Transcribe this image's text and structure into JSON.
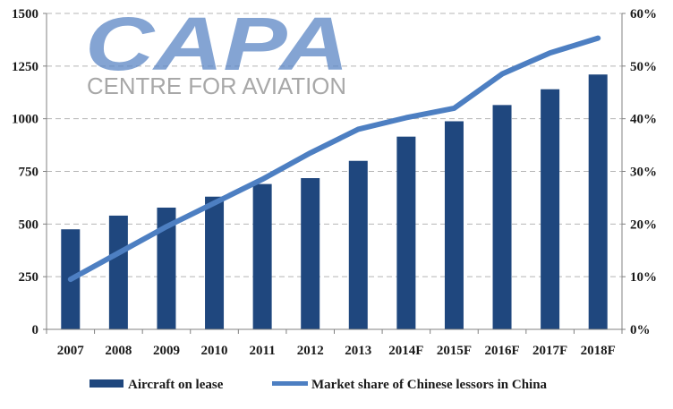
{
  "logo": {
    "name": "CAPA",
    "subtitle": "CENTRE FOR AVIATION"
  },
  "colors": {
    "bar": "#1f477e",
    "line": "#4d7fc2",
    "grid": "#b5b5b5",
    "axis": "#808080"
  },
  "chart_data": {
    "type": "bar",
    "categories": [
      "2007",
      "2008",
      "2009",
      "2010",
      "2011",
      "2012",
      "2013",
      "2014F",
      "2015F",
      "2016F",
      "2017F",
      "2018F"
    ],
    "series": [
      {
        "name": "Aircraft on lease",
        "type": "bar",
        "axis": "left",
        "values": [
          475,
          540,
          578,
          630,
          690,
          718,
          800,
          915,
          988,
          1065,
          1140,
          1210
        ]
      },
      {
        "name": "Market share of Chinese lessors in China",
        "type": "line",
        "axis": "right",
        "values": [
          9.5,
          14.5,
          19.5,
          24,
          28.5,
          33.5,
          38,
          40.2,
          42,
          48.5,
          52.5,
          55.3
        ]
      }
    ],
    "y_left": {
      "min": 0,
      "max": 1500,
      "ticks": [
        0,
        250,
        500,
        750,
        1000,
        1250,
        1500
      ],
      "tick_labels": [
        "0",
        "250",
        "500",
        "750",
        "1000",
        "1250",
        "1500"
      ]
    },
    "y_right": {
      "min": 0,
      "max": 60,
      "ticks": [
        0,
        10,
        20,
        30,
        40,
        50,
        60
      ],
      "tick_labels": [
        "0%",
        "10%",
        "20%",
        "30%",
        "40%",
        "50%",
        "60%"
      ]
    },
    "grid": true,
    "legend": "bottom"
  }
}
